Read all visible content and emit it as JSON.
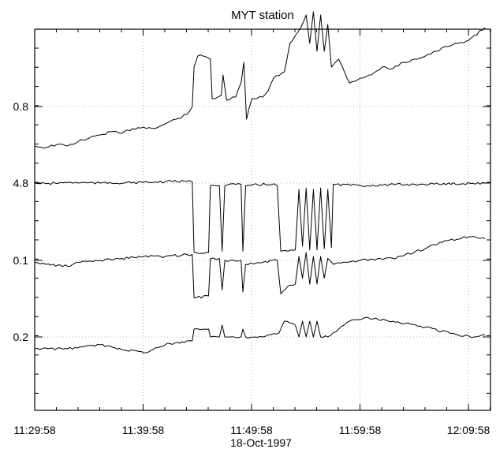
{
  "chart_data": {
    "type": "line",
    "title": "MYT station",
    "xlabel": "18-Oct-1997",
    "ylabel": "",
    "x_ticks": [
      "11:29:58",
      "11:39:58",
      "11:49:58",
      "11:59:58",
      "12:09:58"
    ],
    "x_range": [
      "11:29:58",
      "12:12:00"
    ],
    "grid": true,
    "legend": "none",
    "series": [
      {
        "y_tick": "0.8",
        "points": [
          [
            "11:29:58",
            0.55
          ],
          [
            "11:31:00",
            0.54
          ],
          [
            "11:32:00",
            0.56
          ],
          [
            "11:33:00",
            0.55
          ],
          [
            "11:34:00",
            0.58
          ],
          [
            "11:35:00",
            0.6
          ],
          [
            "11:36:00",
            0.62
          ],
          [
            "11:37:00",
            0.64
          ],
          [
            "11:38:00",
            0.63
          ],
          [
            "11:39:00",
            0.66
          ],
          [
            "11:40:00",
            0.67
          ],
          [
            "11:41:00",
            0.66
          ],
          [
            "11:42:00",
            0.69
          ],
          [
            "11:43:00",
            0.72
          ],
          [
            "11:44:00",
            0.75
          ],
          [
            "11:44:30",
            0.8
          ],
          [
            "11:44:40",
            1.05
          ],
          [
            "11:45:00",
            1.12
          ],
          [
            "11:45:30",
            1.12
          ],
          [
            "11:46:10",
            1.1
          ],
          [
            "11:46:20",
            0.85
          ],
          [
            "11:47:10",
            0.87
          ],
          [
            "11:47:20",
            1.0
          ],
          [
            "11:47:40",
            0.84
          ],
          [
            "11:48:30",
            0.86
          ],
          [
            "11:49:00",
            0.95
          ],
          [
            "11:49:15",
            1.08
          ],
          [
            "11:49:30",
            0.72
          ],
          [
            "11:50:00",
            0.85
          ],
          [
            "11:51:00",
            0.86
          ],
          [
            "11:51:30",
            0.9
          ],
          [
            "11:52:00",
            0.98
          ],
          [
            "11:53:00",
            1.02
          ],
          [
            "11:53:30",
            1.2
          ],
          [
            "11:54:00",
            1.25
          ],
          [
            "11:54:30",
            1.3
          ],
          [
            "11:55:00",
            1.38
          ],
          [
            "11:55:20",
            1.2
          ],
          [
            "11:55:40",
            1.4
          ],
          [
            "11:56:00",
            1.15
          ],
          [
            "11:56:20",
            1.38
          ],
          [
            "11:56:40",
            1.15
          ],
          [
            "11:57:00",
            1.32
          ],
          [
            "11:57:20",
            1.05
          ],
          [
            "11:58:00",
            1.1
          ],
          [
            "11:59:00",
            0.95
          ],
          [
            "12:00:00",
            0.98
          ],
          [
            "12:01:00",
            1.0
          ],
          [
            "12:02:00",
            1.05
          ],
          [
            "12:03:00",
            1.04
          ],
          [
            "12:04:00",
            1.08
          ],
          [
            "12:05:00",
            1.1
          ],
          [
            "12:06:00",
            1.12
          ],
          [
            "12:07:00",
            1.15
          ],
          [
            "12:08:00",
            1.18
          ],
          [
            "12:09:00",
            1.2
          ],
          [
            "12:10:00",
            1.22
          ],
          [
            "12:11:30",
            1.3
          ]
        ]
      },
      {
        "y_tick": "4.8",
        "points": [
          [
            "11:29:58",
            4.8
          ],
          [
            "11:31:00",
            4.79
          ],
          [
            "11:33:00",
            4.81
          ],
          [
            "11:36:00",
            4.8
          ],
          [
            "11:40:00",
            4.81
          ],
          [
            "11:42:00",
            4.82
          ],
          [
            "11:44:00",
            4.83
          ],
          [
            "11:44:30",
            4.82
          ],
          [
            "11:44:40",
            3.7
          ],
          [
            "11:46:00",
            3.7
          ],
          [
            "11:46:10",
            4.76
          ],
          [
            "11:47:00",
            4.76
          ],
          [
            "11:47:15",
            3.72
          ],
          [
            "11:47:30",
            4.76
          ],
          [
            "11:48:30",
            4.78
          ],
          [
            "11:49:00",
            4.78
          ],
          [
            "11:49:10",
            3.72
          ],
          [
            "11:49:25",
            4.76
          ],
          [
            "11:52:00",
            4.79
          ],
          [
            "11:52:20",
            4.76
          ],
          [
            "11:52:40",
            3.72
          ],
          [
            "11:53:20",
            3.72
          ],
          [
            "11:54:00",
            3.74
          ],
          [
            "11:54:20",
            4.7
          ],
          [
            "11:54:40",
            3.8
          ],
          [
            "11:55:00",
            4.72
          ],
          [
            "11:55:20",
            3.74
          ],
          [
            "11:55:40",
            4.7
          ],
          [
            "11:56:00",
            3.74
          ],
          [
            "11:56:20",
            4.72
          ],
          [
            "11:56:40",
            3.76
          ],
          [
            "11:57:00",
            4.7
          ],
          [
            "11:57:20",
            3.78
          ],
          [
            "11:57:30",
            4.78
          ],
          [
            "12:00:00",
            4.76
          ],
          [
            "12:05:00",
            4.78
          ],
          [
            "12:11:30",
            4.8
          ]
        ]
      },
      {
        "y_tick": "0.1",
        "points": [
          [
            "11:29:58",
            0.09
          ],
          [
            "11:31:00",
            0.08
          ],
          [
            "11:33:00",
            0.07
          ],
          [
            "11:34:00",
            0.09
          ],
          [
            "11:36:00",
            0.1
          ],
          [
            "11:38:00",
            0.11
          ],
          [
            "11:40:00",
            0.12
          ],
          [
            "11:42:00",
            0.12
          ],
          [
            "11:44:00",
            0.13
          ],
          [
            "11:44:30",
            0.13
          ],
          [
            "11:44:40",
            -0.09
          ],
          [
            "11:46:00",
            -0.08
          ],
          [
            "11:46:10",
            0.11
          ],
          [
            "11:47:00",
            0.11
          ],
          [
            "11:47:15",
            -0.05
          ],
          [
            "11:47:30",
            0.1
          ],
          [
            "11:49:00",
            0.1
          ],
          [
            "11:49:10",
            -0.06
          ],
          [
            "11:49:25",
            0.08
          ],
          [
            "11:51:00",
            0.09
          ],
          [
            "11:52:20",
            0.1
          ],
          [
            "11:52:40",
            -0.07
          ],
          [
            "11:53:20",
            -0.03
          ],
          [
            "11:54:00",
            -0.02
          ],
          [
            "11:54:20",
            0.12
          ],
          [
            "11:54:40",
            0.01
          ],
          [
            "11:55:00",
            0.14
          ],
          [
            "11:55:20",
            -0.02
          ],
          [
            "11:55:40",
            0.12
          ],
          [
            "11:56:00",
            -0.02
          ],
          [
            "11:56:20",
            0.12
          ],
          [
            "11:56:40",
            0.01
          ],
          [
            "11:57:00",
            0.11
          ],
          [
            "11:57:30",
            0.08
          ],
          [
            "12:00:00",
            0.1
          ],
          [
            "12:03:00",
            0.11
          ],
          [
            "12:06:00",
            0.16
          ],
          [
            "12:08:00",
            0.2
          ],
          [
            "12:10:00",
            0.22
          ],
          [
            "12:11:30",
            0.21
          ]
        ]
      },
      {
        "y_tick": "0.2",
        "points": [
          [
            "11:29:58",
            0.17
          ],
          [
            "11:33:00",
            0.17
          ],
          [
            "11:36:00",
            0.18
          ],
          [
            "11:40:00",
            0.16
          ],
          [
            "11:42:00",
            0.18
          ],
          [
            "11:44:00",
            0.19
          ],
          [
            "11:44:30",
            0.19
          ],
          [
            "11:44:40",
            0.22
          ],
          [
            "11:46:00",
            0.22
          ],
          [
            "11:46:10",
            0.2
          ],
          [
            "11:47:00",
            0.2
          ],
          [
            "11:47:15",
            0.23
          ],
          [
            "11:47:30",
            0.2
          ],
          [
            "11:49:00",
            0.2
          ],
          [
            "11:49:10",
            0.22
          ],
          [
            "11:49:25",
            0.2
          ],
          [
            "11:51:00",
            0.2
          ],
          [
            "11:52:30",
            0.21
          ],
          [
            "11:53:00",
            0.24
          ],
          [
            "11:54:00",
            0.23
          ],
          [
            "11:54:20",
            0.2
          ],
          [
            "11:54:40",
            0.24
          ],
          [
            "11:55:00",
            0.2
          ],
          [
            "11:55:20",
            0.24
          ],
          [
            "11:55:40",
            0.2
          ],
          [
            "11:56:00",
            0.24
          ],
          [
            "11:56:20",
            0.2
          ],
          [
            "11:57:00",
            0.2
          ],
          [
            "11:58:00",
            0.22
          ],
          [
            "11:59:00",
            0.24
          ],
          [
            "12:00:30",
            0.25
          ],
          [
            "12:03:00",
            0.24
          ],
          [
            "12:06:00",
            0.225
          ],
          [
            "12:09:00",
            0.205
          ],
          [
            "12:10:30",
            0.2
          ],
          [
            "12:11:30",
            0.205
          ]
        ]
      }
    ]
  }
}
